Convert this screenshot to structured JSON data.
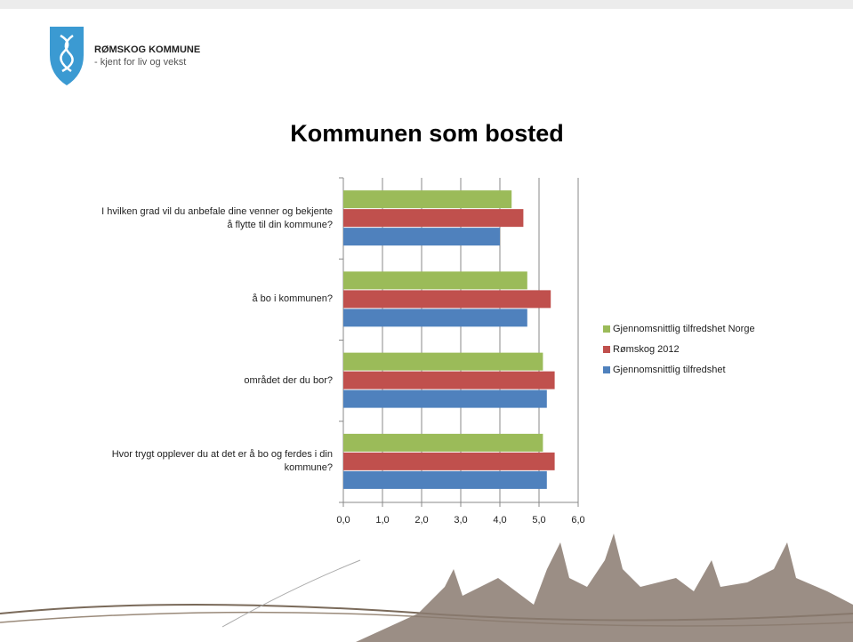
{
  "logo": {
    "name": "RØMSKOG KOMMUNE",
    "tagline": "- kjent for liv og vekst"
  },
  "chart_data": {
    "type": "hbar",
    "title": "Kommunen som bosted",
    "categories": [
      "I hvilken grad vil du anbefale dine venner og bekjente å flytte til din kommune?",
      "å bo i kommunen?",
      "området der du bor?",
      "Hvor trygt opplever du at det er å bo og ferdes i din kommune?"
    ],
    "series": [
      {
        "name": "Gjennomsnittlig tilfredshet Norge",
        "color": "#9bbb59",
        "values": [
          4.3,
          4.7,
          5.1,
          5.1
        ]
      },
      {
        "name": "Rømskog 2012",
        "color": "#c0504d",
        "values": [
          4.6,
          5.3,
          5.4,
          5.4
        ]
      },
      {
        "name": "Gjennomsnittlig tilfredshet",
        "color": "#4f81bd",
        "values": [
          4.0,
          4.7,
          5.2,
          5.2
        ]
      }
    ],
    "xlim": [
      0,
      6
    ],
    "xticks": [
      {
        "value": 0,
        "label": "0,0"
      },
      {
        "value": 1,
        "label": "1,0"
      },
      {
        "value": 2,
        "label": "2,0"
      },
      {
        "value": 3,
        "label": "3,0"
      },
      {
        "value": 4,
        "label": "4,0"
      },
      {
        "value": 5,
        "label": "5,0"
      },
      {
        "value": 6,
        "label": "6,0"
      }
    ],
    "grid": true,
    "legend": "right"
  }
}
